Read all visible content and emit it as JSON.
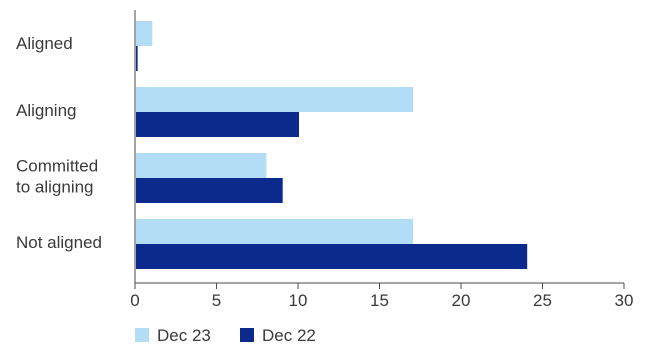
{
  "chart_data": {
    "type": "bar",
    "orientation": "horizontal",
    "categories": [
      [
        "Aligned"
      ],
      [
        "Aligning"
      ],
      [
        "Committed",
        "to aligning"
      ],
      [
        "Not aligned"
      ]
    ],
    "series": [
      {
        "name": "Dec 23",
        "color": "#b3dcf5",
        "values": [
          1,
          17,
          8,
          17
        ]
      },
      {
        "name": "Dec 22",
        "color": "#0b2a8c",
        "values": [
          0.1,
          10,
          9,
          24
        ]
      }
    ],
    "xlim": [
      0,
      30
    ],
    "xticks": [
      0,
      5,
      10,
      15,
      20,
      25,
      30
    ],
    "grid": false,
    "legend": "bottom-left",
    "title": "",
    "xlabel": "",
    "ylabel": ""
  }
}
